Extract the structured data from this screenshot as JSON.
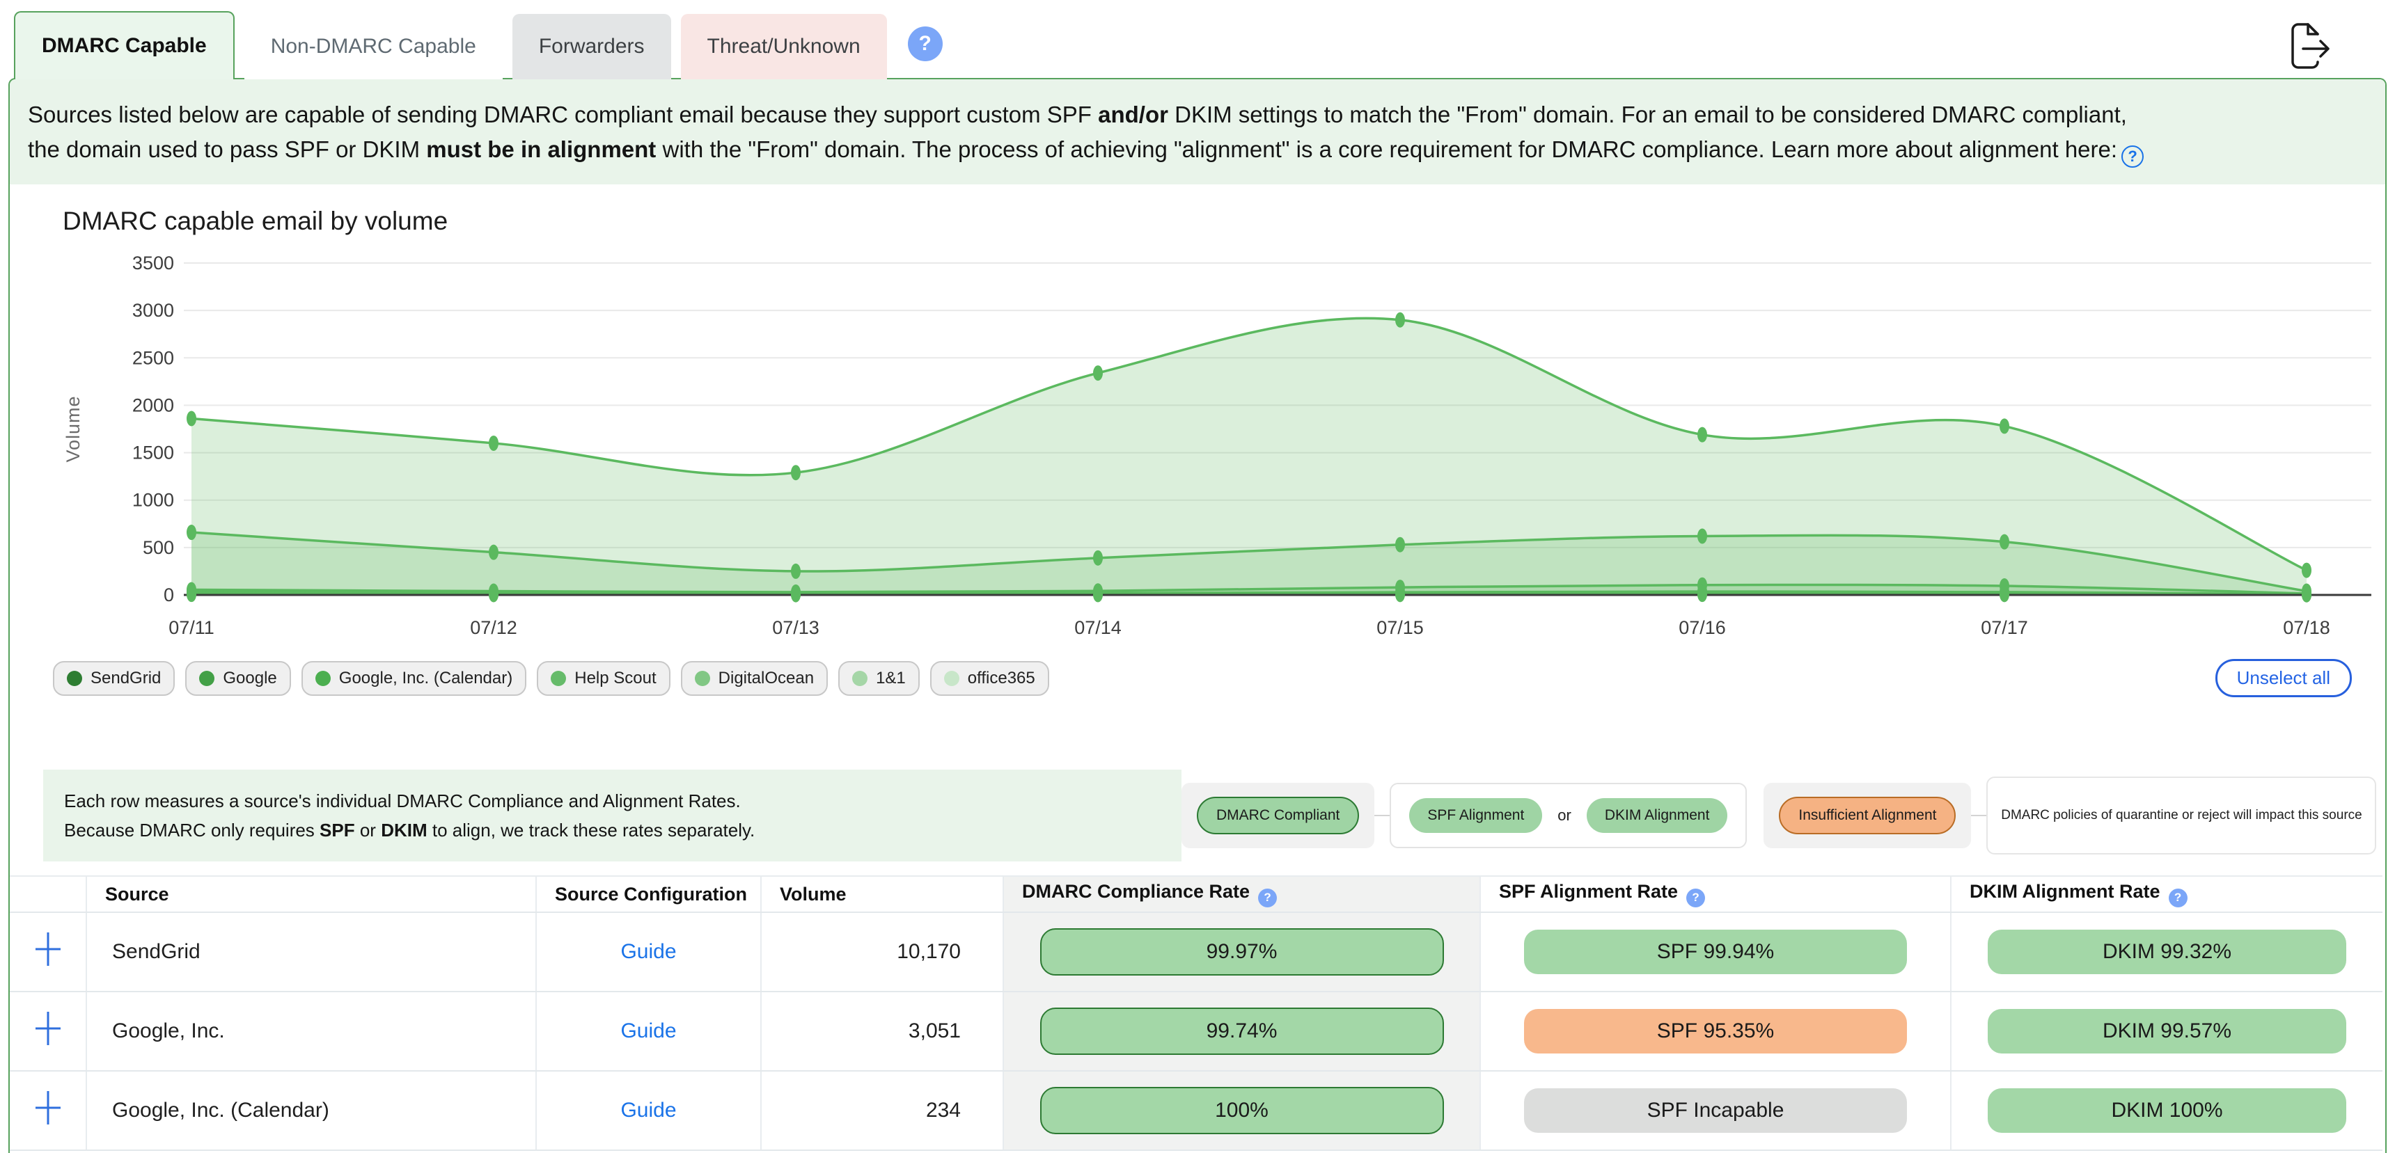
{
  "tabs": [
    {
      "label": "DMARC Capable",
      "active": true
    },
    {
      "label": "Non-DMARC Capable",
      "active": false
    },
    {
      "label": "Forwarders",
      "active": false
    },
    {
      "label": "Threat/Unknown",
      "active": false
    }
  ],
  "icons": {
    "help": "?"
  },
  "description": {
    "line1": [
      {
        "text": "Sources listed below are capable of sending DMARC compliant email because they support custom SPF ",
        "bold": false
      },
      {
        "text": "and/or",
        "bold": true
      },
      {
        "text": " DKIM settings to match the \"From\" domain. For an email to be considered DMARC compliant,",
        "bold": false
      }
    ],
    "line2": [
      {
        "text": "the domain used to pass SPF or DKIM ",
        "bold": false
      },
      {
        "text": "must be in alignment",
        "bold": true
      },
      {
        "text": " with the \"From\" domain. The process of achieving \"alignment\" is a core requirement for DMARC compliance. Learn more about alignment here:",
        "bold": false
      }
    ]
  },
  "chart_data": {
    "type": "area",
    "title": "DMARC capable email by volume",
    "ylabel": "Volume",
    "x": [
      "07/11",
      "07/12",
      "07/13",
      "07/14",
      "07/15",
      "07/16",
      "07/17",
      "07/18"
    ],
    "ylim": [
      0,
      3500
    ],
    "yticks": [
      0,
      500,
      1000,
      1500,
      2000,
      2500,
      3000,
      3500
    ],
    "grid": true,
    "legend_position": "bottom",
    "line_color": "#5bb95f",
    "fill_color": "rgba(111,191,112,0.25)",
    "series": [
      {
        "name": "SendGrid",
        "values": [
          1860,
          1600,
          1290,
          2340,
          2900,
          1690,
          1780,
          260
        ]
      },
      {
        "name": "Google",
        "values": [
          660,
          450,
          250,
          390,
          530,
          620,
          560,
          40
        ]
      },
      {
        "name": "Google, Inc. (Calendar)",
        "values": [
          55,
          40,
          30,
          42,
          80,
          105,
          95,
          15
        ]
      },
      {
        "name": "Help Scout",
        "values": [
          32,
          24,
          16,
          20,
          28,
          36,
          30,
          8
        ]
      },
      {
        "name": "DigitalOcean",
        "values": [
          20,
          15,
          10,
          13,
          17,
          21,
          18,
          5
        ]
      },
      {
        "name": "1&1",
        "values": [
          12,
          9,
          6,
          8,
          10,
          12,
          10,
          3
        ]
      },
      {
        "name": "office365",
        "values": [
          6,
          4,
          3,
          4,
          5,
          6,
          5,
          2
        ]
      }
    ]
  },
  "chart_legend": [
    {
      "label": "SendGrid",
      "color": "#2e7d32"
    },
    {
      "label": "Google",
      "color": "#43a047"
    },
    {
      "label": "Google, Inc. (Calendar)",
      "color": "#4caf50"
    },
    {
      "label": "Help Scout",
      "color": "#66bb6a"
    },
    {
      "label": "DigitalOcean",
      "color": "#81c784"
    },
    {
      "label": "1&1",
      "color": "#a5d6a7"
    },
    {
      "label": "office365",
      "color": "#c8e6c9"
    }
  ],
  "unselect_all_label": "Unselect all",
  "info_note": {
    "line1": [
      {
        "text": "Each row measures a source's individual DMARC Compliance and Alignment Rates.",
        "bold": false
      }
    ],
    "line2": [
      {
        "text": "Because DMARC only requires ",
        "bold": false
      },
      {
        "text": "SPF",
        "bold": true
      },
      {
        "text": " or ",
        "bold": false
      },
      {
        "text": "DKIM",
        "bold": true
      },
      {
        "text": " to align, we track these rates separately.",
        "bold": false
      }
    ]
  },
  "compliance_legend": {
    "compliant_label": "DMARC Compliant",
    "spf_label": "SPF Alignment",
    "or_label": "or",
    "dkim_label": "DKIM Alignment",
    "insufficient_label": "Insufficient Alignment",
    "impact_text": "DMARC policies of quarantine or reject will impact this source"
  },
  "table": {
    "columns": [
      {
        "label": "",
        "help": false
      },
      {
        "label": "Source",
        "help": false
      },
      {
        "label": "Source Configuration",
        "help": false
      },
      {
        "label": "Volume",
        "help": false
      },
      {
        "label": "DMARC Compliance Rate",
        "help": true
      },
      {
        "label": "SPF Alignment Rate",
        "help": true
      },
      {
        "label": "DKIM Alignment Rate",
        "help": true
      }
    ],
    "rows": [
      {
        "source": "SendGrid",
        "config": "Guide",
        "volume": "10,170",
        "dmarc": {
          "label": "99.97%",
          "type": "green"
        },
        "spf": {
          "label": "SPF 99.94%",
          "type": "green"
        },
        "dkim": {
          "label": "DKIM 99.32%",
          "type": "green"
        }
      },
      {
        "source": "Google, Inc.",
        "config": "Guide",
        "volume": "3,051",
        "dmarc": {
          "label": "99.74%",
          "type": "green"
        },
        "spf": {
          "label": "SPF 95.35%",
          "type": "orange"
        },
        "dkim": {
          "label": "DKIM 99.57%",
          "type": "green"
        }
      },
      {
        "source": "Google, Inc. (Calendar)",
        "config": "Guide",
        "volume": "234",
        "dmarc": {
          "label": "100%",
          "type": "green"
        },
        "spf": {
          "label": "SPF Incapable",
          "type": "gray"
        },
        "dkim": {
          "label": "DKIM 100%",
          "type": "green"
        }
      }
    ]
  },
  "colors": {
    "accent_green": "#57a25d",
    "pill_green": "#a3d7a7",
    "pill_orange": "#f8b88c",
    "pill_gray": "#dcdddc",
    "link_blue": "#1a73e8"
  }
}
